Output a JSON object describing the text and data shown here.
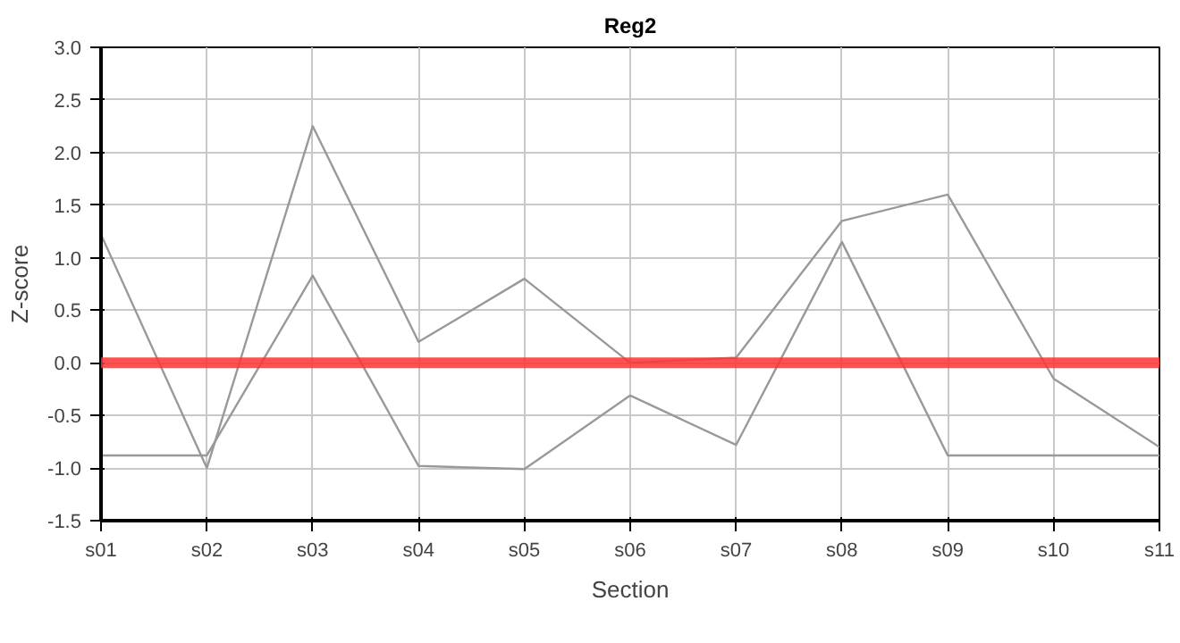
{
  "chart_data": {
    "type": "line",
    "title": "Reg2",
    "xlabel": "Section",
    "ylabel": "Z-score",
    "categories": [
      "s01",
      "s02",
      "s03",
      "s04",
      "s05",
      "s06",
      "s07",
      "s08",
      "s09",
      "s10",
      "s11"
    ],
    "series": [
      {
        "color": "#999999",
        "values": [
          1.22,
          -1.0,
          2.25,
          0.2,
          0.8,
          0.0,
          0.05,
          1.35,
          1.6,
          -0.15,
          -0.8
        ]
      },
      {
        "color": "#999999",
        "values": [
          -0.88,
          -0.88,
          0.83,
          -0.98,
          -1.01,
          -0.31,
          -0.78,
          1.15,
          -0.88,
          -0.88,
          -0.88
        ]
      }
    ],
    "ylim": [
      -1.5,
      3.0
    ],
    "yticks": [
      -1.5,
      {
        "value": -1,
        "label": "-1.0"
      },
      -0.5,
      {
        "value": 0,
        "label": "0.0"
      },
      0.5,
      {
        "value": 1,
        "label": "1.0"
      },
      1.5,
      {
        "value": 2,
        "label": "2.0"
      },
      2.5,
      {
        "value": 3,
        "label": "3.0"
      }
    ],
    "ref_lines": [
      {
        "axis": "y",
        "value": 0.0,
        "color": "#ff3333"
      }
    ],
    "grid": true,
    "line_style": "solid"
  }
}
